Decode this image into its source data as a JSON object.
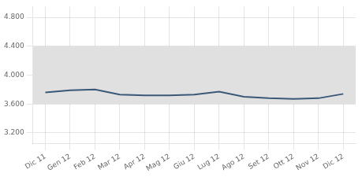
{
  "chart_data": {
    "type": "line",
    "categories": [
      "Dic 11",
      "Gen 12",
      "Feb 12",
      "Mar 12",
      "Apr 12",
      "Mag 12",
      "Giu 12",
      "Lug 12",
      "Ago 12",
      "Set 12",
      "Ott 12",
      "Nov 12",
      "Dic 12"
    ],
    "values": [
      3.76,
      3.79,
      3.8,
      3.73,
      3.72,
      3.72,
      3.73,
      3.77,
      3.7,
      3.68,
      3.67,
      3.68,
      3.74
    ],
    "color": "#3a5878",
    "ylim": [
      3.05,
      4.95
    ],
    "yticks": [
      {
        "value": 3.2,
        "label": "3.200"
      },
      {
        "value": 3.6,
        "label": "3.600"
      },
      {
        "value": 4.0,
        "label": "4.000"
      },
      {
        "value": 4.4,
        "label": "4.400"
      },
      {
        "value": 4.8,
        "label": "4.800"
      }
    ],
    "band": {
      "from": 3.6,
      "to": 4.4,
      "color": "#e0e0e0"
    },
    "grid": true
  }
}
